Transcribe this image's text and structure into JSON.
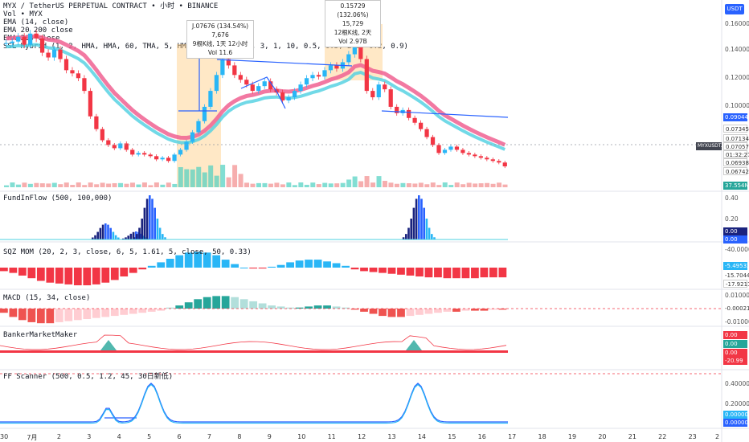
{
  "header": {
    "symbol_line": "MYX / TetherUS PERPETUAL CONTRACT • 小时 • BINANCE",
    "currency_button": "USDT"
  },
  "main_legend": [
    "Vol • MYX",
    "EMA (14, close)",
    "EMA 20 200 close",
    "EMA 200 close",
    "SSL Hybrid (1, 2, HMA, HMA, 60, TMA, 5, HMA, 15, close, 1, 3, 1, 10, 0.5, 0.5, 2.0, 0.2, 0.9)"
  ],
  "tooltips": [
    {
      "line1": "J.07676 (134.54%) 7,676",
      "line2": "9根K线, 1天 12小时",
      "line3": "Vol 11.6"
    },
    {
      "line1": "0.15729 (132.06%) 15,729",
      "line2": "12根K线, 2天",
      "line3": "Vol 2.97B"
    }
  ],
  "price_axis": {
    "ticks": [
      "0.16000",
      "0.14000",
      "0.12000",
      "0.10000"
    ],
    "badges": [
      {
        "text": "0.09044",
        "color": "#2962ff"
      },
      {
        "text": "0.07345",
        "color": "#ffffff"
      },
      {
        "text": "0.07134",
        "color": "#ffffff"
      },
      {
        "text": "MYXUSDT.P",
        "color": "#434651"
      },
      {
        "text": "0.07057",
        "color": "#ffffff"
      },
      {
        "text": "01:32:27",
        "color": "#ffffff"
      },
      {
        "text": "0.06938",
        "color": "#ffffff"
      },
      {
        "text": "0.06742",
        "color": "#ffffff"
      },
      {
        "text": "37.554M",
        "color": "#26a69a"
      }
    ]
  },
  "panels": {
    "fundinflow": {
      "label": "FundInFlow (500, 100,000)",
      "ticks": [
        "0.40",
        "0.20"
      ],
      "badges": [
        "0.00",
        "0.00"
      ]
    },
    "squeeze": {
      "label": "SQZ MOM (20, 2, 3, close, 6, 5, 1.61, 5, close, 50, 0.33)",
      "ticks": [
        "-40.00000"
      ],
      "badges": [
        "-5.49532",
        "-15.70447",
        "-17.92111"
      ]
    },
    "macd": {
      "label": "MACD (15, 34, close)",
      "ticks": [
        "0.01000",
        "-0.01000"
      ],
      "badges": [
        "-0.00021"
      ]
    },
    "banker": {
      "label": "BankerMarketMaker",
      "badges": [
        "0.00",
        "0.00",
        "0.00",
        "-20.99"
      ]
    },
    "ffscanner": {
      "label": "FF Scanner (500, 0.5, 1.2, 45, 30日新低)",
      "ticks": [
        "0.40000",
        "0.20000"
      ],
      "badges": [
        "0.00000",
        "0.00000"
      ]
    }
  },
  "time_axis": [
    "30",
    "7月",
    "2",
    "3",
    "4",
    "5",
    "6",
    "7",
    "8",
    "9",
    "10",
    "11",
    "12",
    "13",
    "14",
    "15",
    "16",
    "17",
    "18",
    "19",
    "20",
    "21",
    "22",
    "23",
    "2"
  ],
  "chart_data": {
    "type": "candlestick",
    "symbol": "MYX / TetherUS PERPETUAL CONTRACT",
    "interval": "小时",
    "x_label_ticks": [
      "30",
      "7月",
      "2",
      "3",
      "4",
      "5",
      "6",
      "7",
      "8",
      "9",
      "10",
      "11",
      "12",
      "13",
      "14",
      "15",
      "16",
      "17"
    ],
    "close_series": [
      0.148,
      0.149,
      0.152,
      0.147,
      0.154,
      0.151,
      0.142,
      0.139,
      0.144,
      0.138,
      0.131,
      0.129,
      0.126,
      0.118,
      0.102,
      0.094,
      0.087,
      0.084,
      0.082,
      0.085,
      0.081,
      0.078,
      0.079,
      0.078,
      0.077,
      0.075,
      0.076,
      0.074,
      0.078,
      0.081,
      0.086,
      0.092,
      0.099,
      0.108,
      0.118,
      0.128,
      0.138,
      0.134,
      0.128,
      0.125,
      0.122,
      0.118,
      0.121,
      0.124,
      0.119,
      0.117,
      0.112,
      0.114,
      0.118,
      0.122,
      0.126,
      0.128,
      0.127,
      0.131,
      0.134,
      0.132,
      0.136,
      0.141,
      0.157,
      0.138,
      0.118,
      0.114,
      0.122,
      0.119,
      0.108,
      0.104,
      0.106,
      0.101,
      0.098,
      0.094,
      0.089,
      0.084,
      0.079,
      0.081,
      0.083,
      0.081,
      0.079,
      0.078,
      0.077,
      0.076,
      0.075,
      0.074,
      0.073,
      0.0706
    ],
    "price_ylim": [
      0.06,
      0.165
    ],
    "last_price": 0.07057
  }
}
